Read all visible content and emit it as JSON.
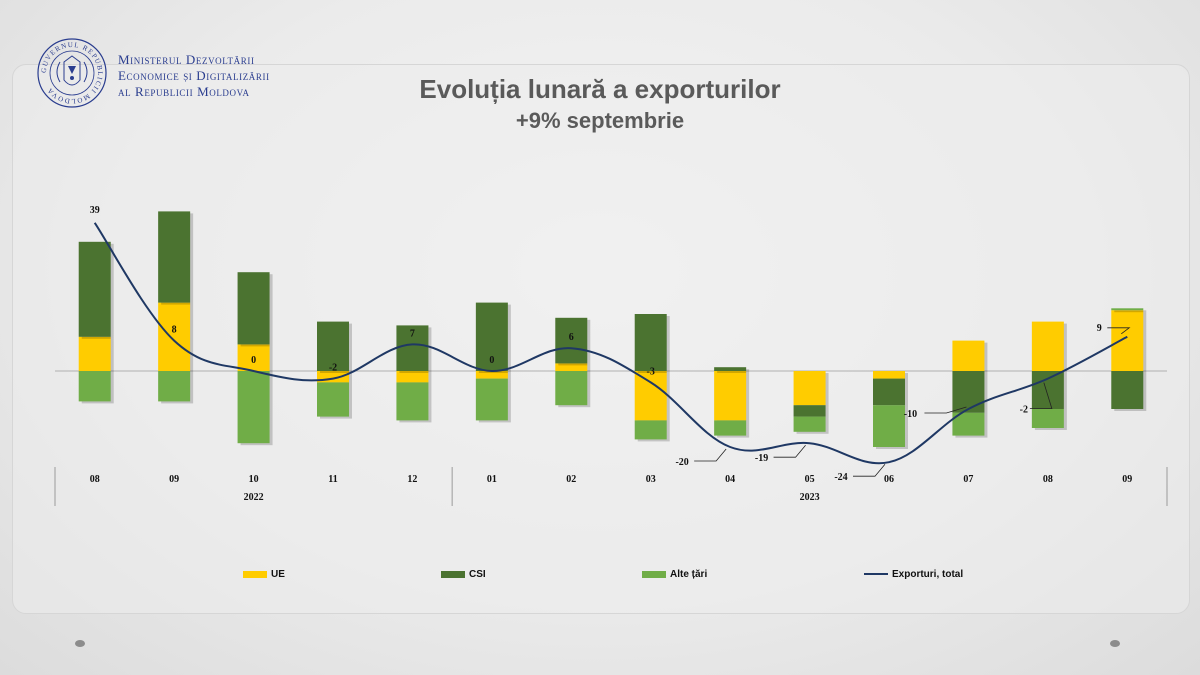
{
  "header": {
    "ministry_lines": [
      "Ministerul Dezvoltării",
      "Economice și Digitalizării",
      "al Republicii Moldova"
    ],
    "emblem_text": "GUVERNUL REPUBLICII MOLDOVA"
  },
  "title": "Evoluția lunară a exporturilor",
  "subtitle": "+9% septembrie",
  "colors": {
    "ue": "#FFCC00",
    "csi": "#4B7330",
    "alte": "#70AD47",
    "total": "#1F3864"
  },
  "chart_data": {
    "type": "bar",
    "stacked": true,
    "categories": [
      "08",
      "09",
      "10",
      "11",
      "12",
      "01",
      "02",
      "03",
      "04",
      "05",
      "06",
      "07",
      "08",
      "09"
    ],
    "year_groups": [
      {
        "label": "2022",
        "from": 0,
        "to": 4
      },
      {
        "label": "2023",
        "from": 5,
        "to": 13
      }
    ],
    "series": [
      {
        "name": "UE",
        "type": "bar",
        "values": [
          9,
          18,
          7,
          -3,
          -3,
          -2,
          2,
          -13,
          -13,
          -9,
          -2,
          8,
          13,
          16
        ]
      },
      {
        "name": "CSI",
        "type": "bar",
        "values": [
          25,
          24,
          19,
          13,
          12,
          18,
          12,
          15,
          1,
          -3,
          -7,
          -11,
          -10,
          -10
        ]
      },
      {
        "name": "Alte țări",
        "type": "bar",
        "values": [
          -8,
          -8,
          -19,
          -9,
          -10,
          -11,
          -9,
          -5,
          -4,
          -4,
          -11,
          -6,
          -5,
          0.5
        ]
      },
      {
        "name": "Exporturi, total",
        "type": "line",
        "values": [
          39,
          8,
          0,
          -2,
          7,
          0,
          6,
          -3,
          -20,
          -19,
          -24,
          -10,
          -2,
          9
        ]
      }
    ],
    "data_labels": [
      "39",
      "8",
      "0",
      "-2",
      "7",
      "0",
      "6",
      "-3",
      "-20",
      "-19",
      "-24",
      "-10",
      "-2",
      "9"
    ],
    "ylim": [
      -30,
      50
    ],
    "grid": false,
    "legend_position": "bottom"
  }
}
